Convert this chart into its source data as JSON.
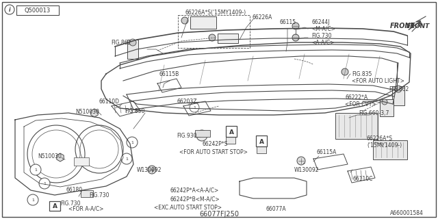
{
  "background_color": "#ffffff",
  "line_color": "#4a4a4a",
  "text_color": "#3a3a3a",
  "fig_number": "Q500013",
  "diagram_subtitle": "66077FJ250",
  "bottom_code": "A660001584",
  "figsize": [
    6.4,
    3.2
  ],
  "dpi": 100
}
